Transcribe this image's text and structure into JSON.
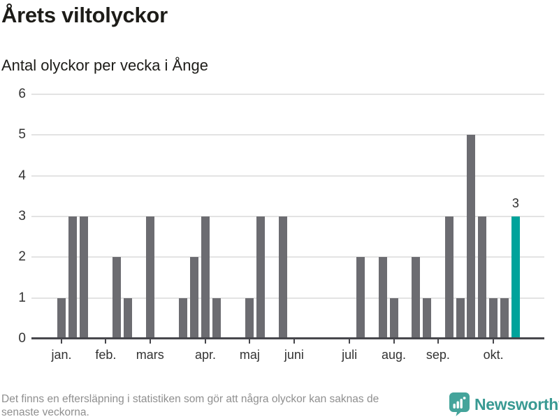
{
  "header": {
    "title": "Årets viltolyckor",
    "subtitle": "Antal olyckor per vecka i Ånge"
  },
  "footer": {
    "note_line1": "Det finns en eftersläpning i statistiken som gör att några olyckor kan saknas de",
    "note_line2": "senaste veckorna.",
    "brand": "Newsworthy"
  },
  "colors": {
    "bar": "#6c6c71",
    "highlight": "#00a39b",
    "gridline": "#e3e3e3",
    "axis": "#47474c",
    "brand_teal": "#399a93"
  },
  "chart_data": {
    "type": "bar",
    "title": "Årets viltolyckor",
    "subtitle": "Antal olyckor per vecka i Ånge",
    "x_unit": "week (weekly bars, January through October)",
    "values": [
      1,
      3,
      3,
      0,
      0,
      2,
      1,
      0,
      3,
      0,
      0,
      1,
      2,
      3,
      1,
      0,
      0,
      1,
      3,
      0,
      3,
      0,
      0,
      0,
      0,
      0,
      0,
      2,
      0,
      2,
      1,
      0,
      2,
      1,
      0,
      3,
      1,
      5,
      3,
      1,
      1,
      3
    ],
    "highlight_index": 41,
    "highlight_value_label": "3",
    "month_ticks": [
      {
        "label": "jan.",
        "slot": 0
      },
      {
        "label": "feb.",
        "slot": 4
      },
      {
        "label": "mars",
        "slot": 8
      },
      {
        "label": "apr.",
        "slot": 13
      },
      {
        "label": "maj",
        "slot": 17
      },
      {
        "label": "juni",
        "slot": 21
      },
      {
        "label": "juli",
        "slot": 26
      },
      {
        "label": "aug.",
        "slot": 30
      },
      {
        "label": "sep.",
        "slot": 34
      },
      {
        "label": "okt.",
        "slot": 39
      }
    ],
    "y_ticks": [
      0,
      1,
      2,
      3,
      4,
      5,
      6
    ],
    "ylim": [
      0,
      6
    ],
    "grid": true,
    "legend": false
  }
}
